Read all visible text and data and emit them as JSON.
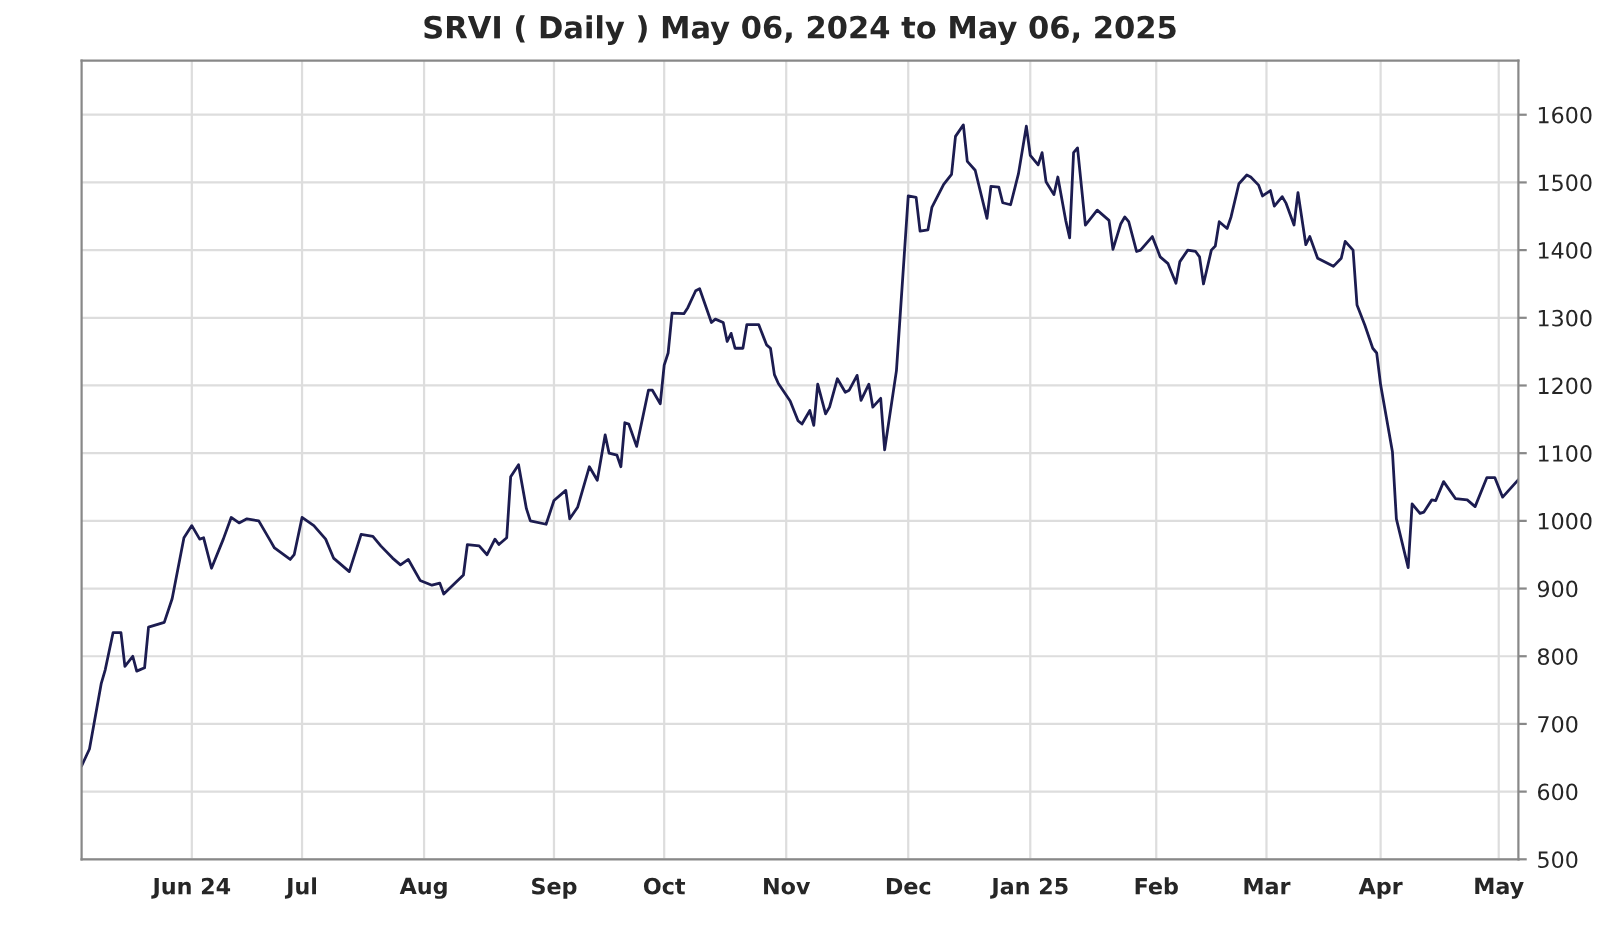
{
  "chart_data": {
    "type": "line",
    "title": "SRVI ( Daily ) May 06, 2024 to May 06, 2025",
    "x": [
      "2024-05-06",
      "2024-05-08",
      "2024-05-11",
      "2024-05-12",
      "2024-05-14",
      "2024-05-16",
      "2024-05-17",
      "2024-05-19",
      "2024-05-20",
      "2024-05-22",
      "2024-05-23",
      "2024-05-27",
      "2024-05-29",
      "2024-06-01",
      "2024-06-03",
      "2024-06-05",
      "2024-06-06",
      "2024-06-08",
      "2024-06-11",
      "2024-06-13",
      "2024-06-15",
      "2024-06-17",
      "2024-06-20",
      "2024-06-23",
      "2024-06-24",
      "2024-06-28",
      "2024-06-29",
      "2024-07-01",
      "2024-07-04",
      "2024-07-07",
      "2024-07-09",
      "2024-07-13",
      "2024-07-16",
      "2024-07-19",
      "2024-07-21",
      "2024-07-24",
      "2024-07-26",
      "2024-07-28",
      "2024-07-31",
      "2024-08-03",
      "2024-08-05",
      "2024-08-06",
      "2024-08-11",
      "2024-08-12",
      "2024-08-15",
      "2024-08-17",
      "2024-08-19",
      "2024-08-20",
      "2024-08-22",
      "2024-08-23",
      "2024-08-25",
      "2024-08-27",
      "2024-08-28",
      "2024-09-01",
      "2024-09-03",
      "2024-09-06",
      "2024-09-07",
      "2024-09-09",
      "2024-09-12",
      "2024-09-14",
      "2024-09-16",
      "2024-09-17",
      "2024-09-19",
      "2024-09-20",
      "2024-09-21",
      "2024-09-22",
      "2024-09-24",
      "2024-09-27",
      "2024-09-28",
      "2024-09-30",
      "2024-10-01",
      "2024-10-02",
      "2024-10-03",
      "2024-10-06",
      "2024-10-07",
      "2024-10-09",
      "2024-10-10",
      "2024-10-13",
      "2024-10-14",
      "2024-10-16",
      "2024-10-17",
      "2024-10-18",
      "2024-10-19",
      "2024-10-21",
      "2024-10-22",
      "2024-10-25",
      "2024-10-27",
      "2024-10-28",
      "2024-10-29",
      "2024-10-30",
      "2024-11-02",
      "2024-11-04",
      "2024-11-05",
      "2024-11-07",
      "2024-11-08",
      "2024-11-09",
      "2024-11-11",
      "2024-11-12",
      "2024-11-14",
      "2024-11-16",
      "2024-11-17",
      "2024-11-19",
      "2024-11-20",
      "2024-11-22",
      "2024-11-23",
      "2024-11-25",
      "2024-11-26",
      "2024-11-29",
      "2024-12-02",
      "2024-12-04",
      "2024-12-05",
      "2024-12-07",
      "2024-12-08",
      "2024-12-11",
      "2024-12-13",
      "2024-12-14",
      "2024-12-16",
      "2024-12-17",
      "2024-12-19",
      "2024-12-22",
      "2024-12-23",
      "2024-12-25",
      "2024-12-26",
      "2024-12-28",
      "2024-12-30",
      "2025-01-01",
      "2025-01-02",
      "2025-01-04",
      "2025-01-05",
      "2025-01-06",
      "2025-01-08",
      "2025-01-09",
      "2025-01-11",
      "2025-01-12",
      "2025-01-13",
      "2025-01-14",
      "2025-01-16",
      "2025-01-19",
      "2025-01-22",
      "2025-01-23",
      "2025-01-25",
      "2025-01-26",
      "2025-01-27",
      "2025-01-29",
      "2025-01-30",
      "2025-02-02",
      "2025-02-04",
      "2025-02-06",
      "2025-02-08",
      "2025-02-09",
      "2025-02-11",
      "2025-02-13",
      "2025-02-14",
      "2025-02-15",
      "2025-02-17",
      "2025-02-18",
      "2025-02-19",
      "2025-02-21",
      "2025-02-22",
      "2025-02-24",
      "2025-02-26",
      "2025-02-27",
      "2025-03-01",
      "2025-03-02",
      "2025-03-04",
      "2025-03-05",
      "2025-03-07",
      "2025-03-08",
      "2025-03-10",
      "2025-03-11",
      "2025-03-13",
      "2025-03-14",
      "2025-03-16",
      "2025-03-20",
      "2025-03-22",
      "2025-03-23",
      "2025-03-25",
      "2025-03-26",
      "2025-03-28",
      "2025-03-30",
      "2025-03-31",
      "2025-04-01",
      "2025-04-04",
      "2025-04-05",
      "2025-04-08",
      "2025-04-09",
      "2025-04-11",
      "2025-04-12",
      "2025-04-14",
      "2025-04-15",
      "2025-04-17",
      "2025-04-20",
      "2025-04-23",
      "2025-04-25",
      "2025-04-28",
      "2025-04-30",
      "2025-05-02",
      "2025-05-06"
    ],
    "series": [
      {
        "color": "#1c1c50",
        "values": [
          638,
          663,
          760,
          780,
          835,
          835,
          785,
          800,
          778,
          783,
          843,
          850,
          885,
          975,
          993,
          973,
          975,
          930,
          973,
          1005,
          997,
          1003,
          1000,
          970,
          960,
          943,
          950,
          1005,
          993,
          973,
          945,
          925,
          980,
          977,
          963,
          945,
          935,
          943,
          912,
          905,
          908,
          892,
          920,
          965,
          963,
          950,
          973,
          965,
          975,
          1065,
          1083,
          1018,
          1000,
          995,
          1030,
          1045,
          1003,
          1020,
          1080,
          1060,
          1127,
          1100,
          1097,
          1080,
          1145,
          1143,
          1110,
          1193,
          1193,
          1173,
          1230,
          1248,
          1307,
          1306,
          1315,
          1340,
          1343,
          1293,
          1298,
          1293,
          1265,
          1277,
          1255,
          1255,
          1290,
          1290,
          1260,
          1255,
          1216,
          1203,
          1177,
          1148,
          1143,
          1163,
          1141,
          1202,
          1158,
          1168,
          1210,
          1190,
          1193,
          1215,
          1178,
          1202,
          1168,
          1181,
          1105,
          1222,
          1480,
          1478,
          1428,
          1430,
          1463,
          1497,
          1512,
          1568,
          1585,
          1531,
          1518,
          1447,
          1494,
          1493,
          1470,
          1467,
          1513,
          1583,
          1540,
          1526,
          1544,
          1501,
          1482,
          1508,
          1444,
          1418,
          1544,
          1551,
          1437,
          1459,
          1444,
          1401,
          1439,
          1449,
          1442,
          1398,
          1400,
          1420,
          1390,
          1380,
          1351,
          1383,
          1400,
          1398,
          1390,
          1350,
          1400,
          1406,
          1442,
          1432,
          1449,
          1498,
          1511,
          1508,
          1496,
          1480,
          1488,
          1465,
          1479,
          1469,
          1437,
          1485,
          1408,
          1420,
          1388,
          1376,
          1388,
          1413,
          1400,
          1319,
          1289,
          1255,
          1248,
          1201,
          1102,
          1003,
          931,
          1025,
          1011,
          1013,
          1031,
          1030,
          1058,
          1033,
          1031,
          1021,
          1064,
          1064,
          1035,
          1061
        ]
      }
    ],
    "xlim": [
      "2024-05-06",
      "2025-05-06"
    ],
    "xticks": [
      {
        "value": "2024-06-03",
        "label": "Jun 24"
      },
      {
        "value": "2024-07-01",
        "label": "Jul"
      },
      {
        "value": "2024-08-01",
        "label": "Aug"
      },
      {
        "value": "2024-09-03",
        "label": "Sep"
      },
      {
        "value": "2024-10-01",
        "label": "Oct"
      },
      {
        "value": "2024-11-01",
        "label": "Nov"
      },
      {
        "value": "2024-12-02",
        "label": "Dec"
      },
      {
        "value": "2025-01-02",
        "label": "Jan 25"
      },
      {
        "value": "2025-02-03",
        "label": "Feb"
      },
      {
        "value": "2025-03-03",
        "label": "Mar"
      },
      {
        "value": "2025-04-01",
        "label": "Apr"
      },
      {
        "value": "2025-05-01",
        "label": "May"
      }
    ],
    "ylim": [
      500,
      1680
    ],
    "yticks": [
      500,
      600,
      700,
      800,
      900,
      1000,
      1100,
      1200,
      1300,
      1400,
      1500,
      1600
    ],
    "grid": true,
    "marker": "none",
    "line_style": "solid"
  }
}
